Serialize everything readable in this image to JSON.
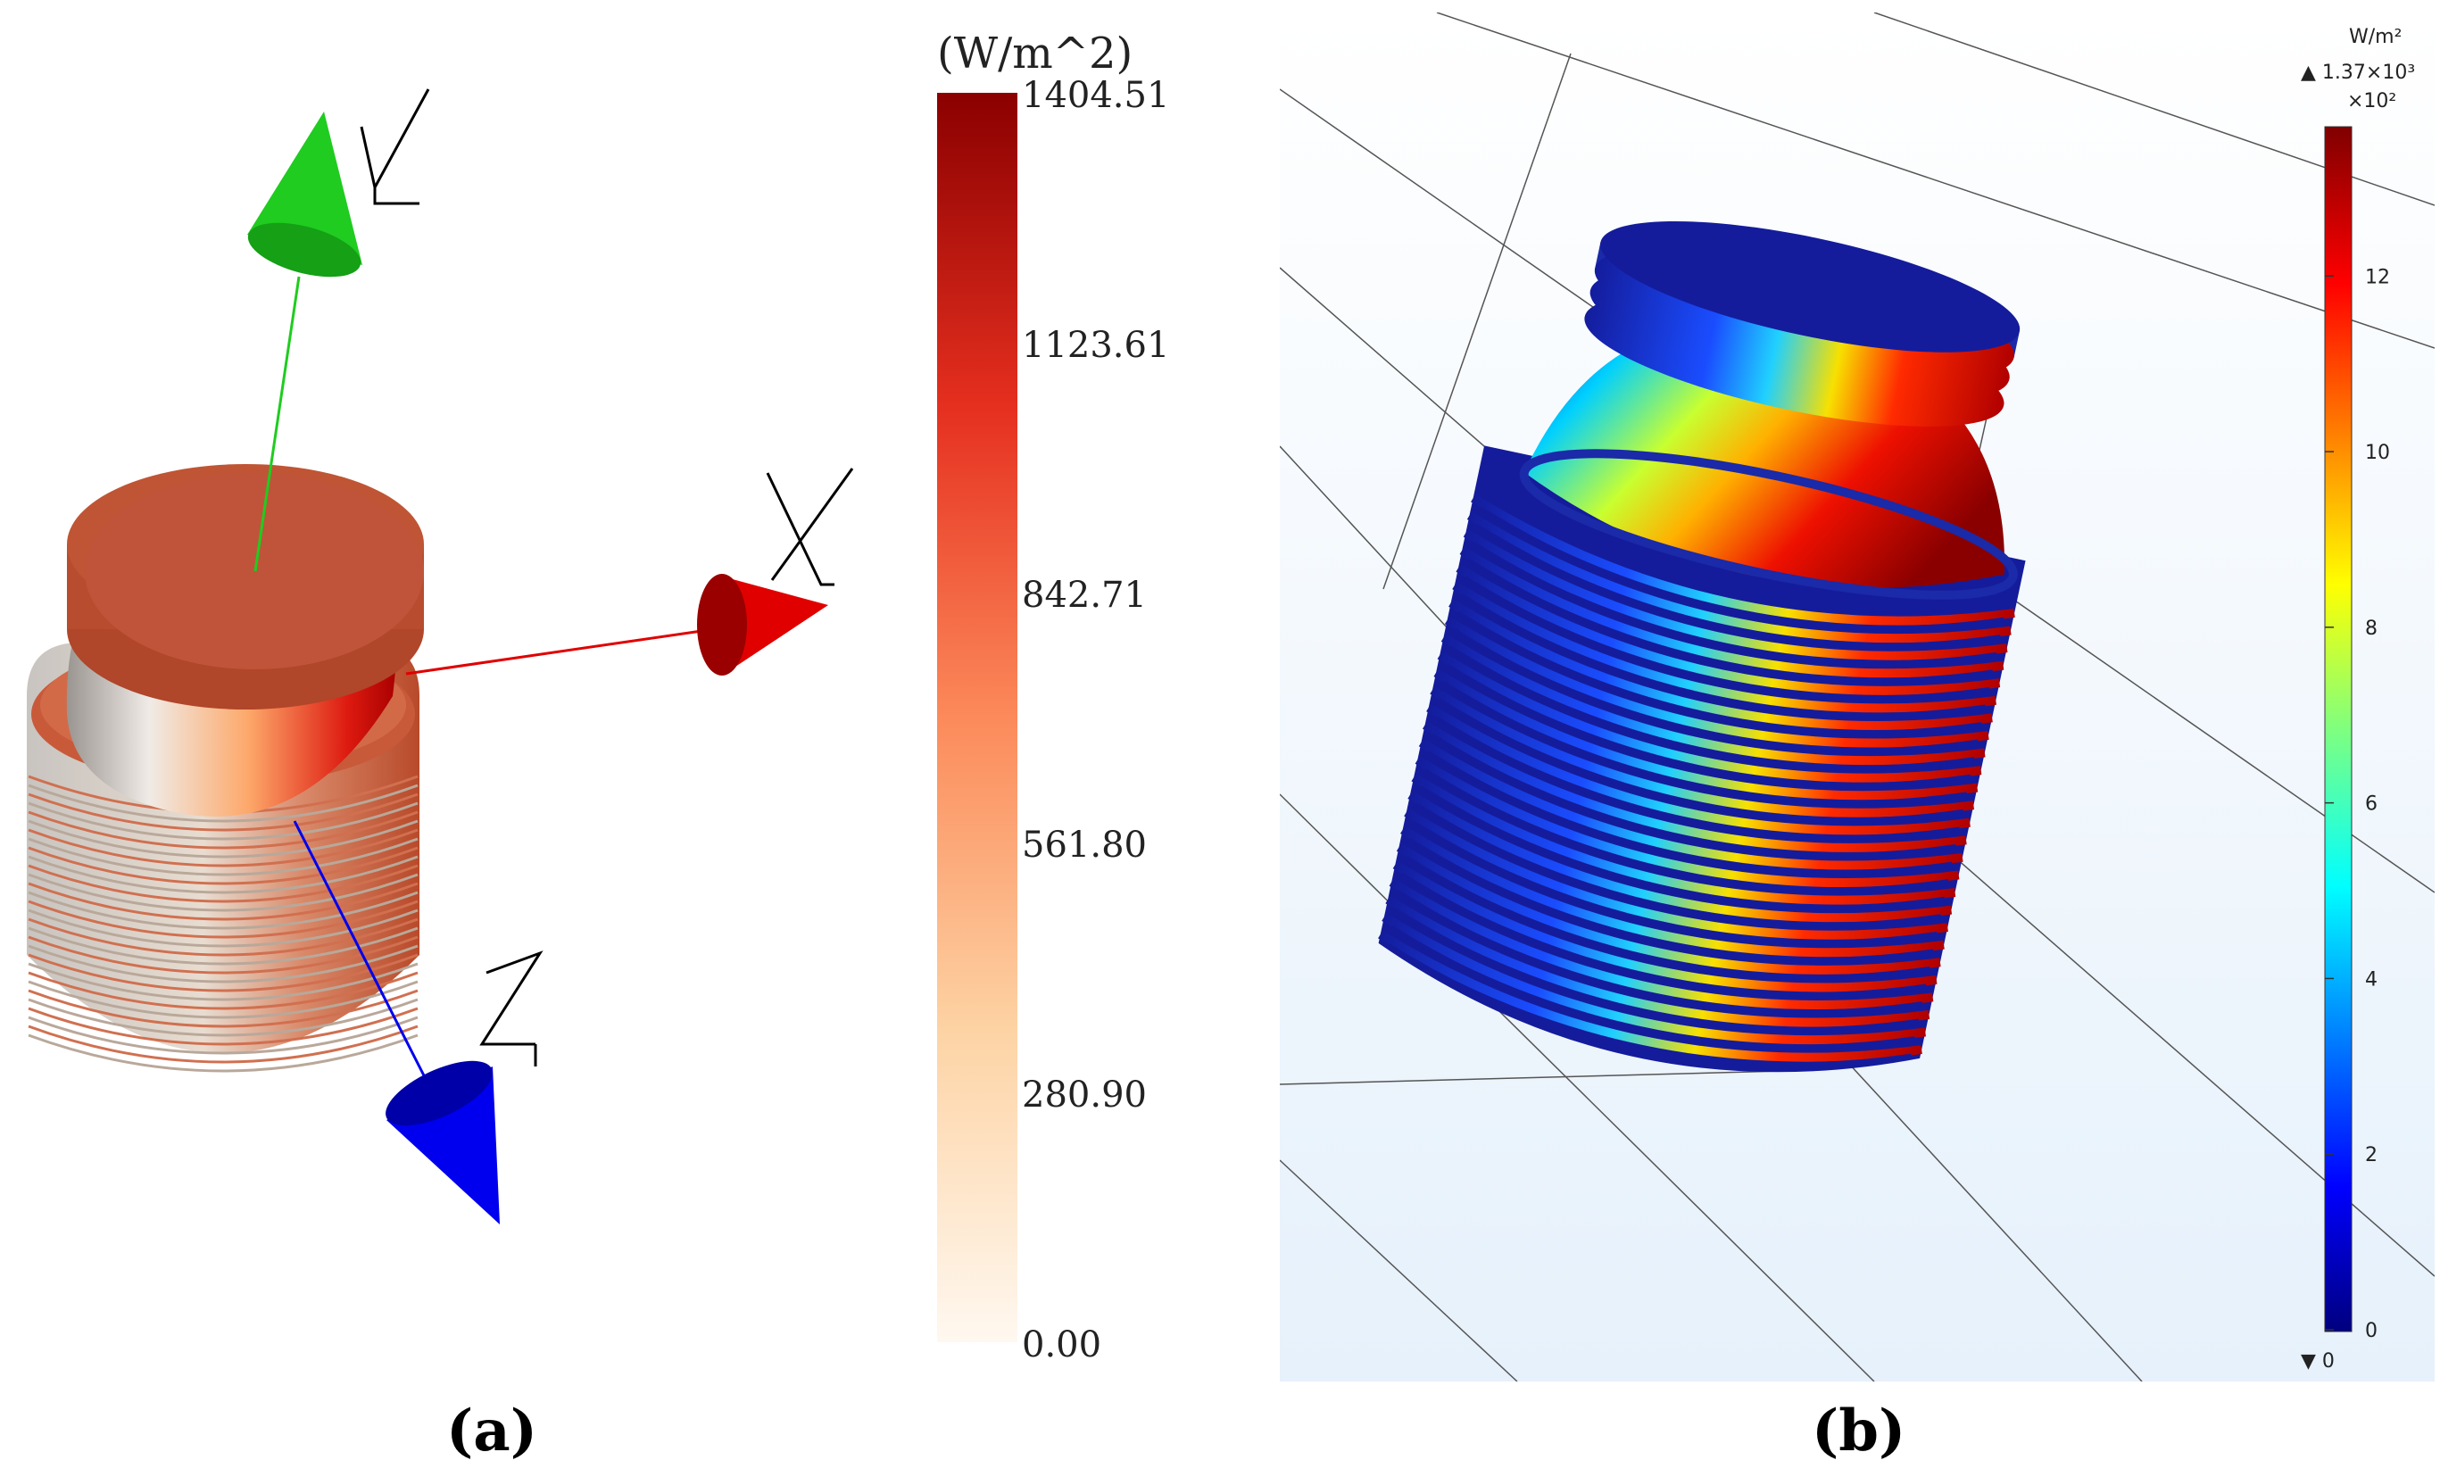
{
  "panel_a": {
    "colorbar_unit": "(W/m^2)",
    "colorbar_ticks": [
      "1404.51",
      "1123.61",
      "842.71",
      "561.80",
      "280.90",
      "0.00"
    ],
    "axis_labels": {
      "x": "X",
      "y": "Y",
      "z": "Z"
    },
    "caption": "(a)"
  },
  "panel_b": {
    "colorbar_unit": "W/m²",
    "max_label": "▲ 1.37×10³",
    "multiplier": "×10²",
    "colorbar_ticks": [
      "12",
      "10",
      "8",
      "6",
      "4",
      "2",
      "0"
    ],
    "min_label": "▼ 0",
    "caption": "(b)"
  },
  "colors": {
    "heat_max": "#8b0000",
    "heat_min": "#fff8f0",
    "axis_x": "#e00000",
    "axis_y": "#1fcc1f",
    "axis_z": "#0000ee",
    "jet_max": "#800000",
    "jet_min": "#00007f"
  }
}
